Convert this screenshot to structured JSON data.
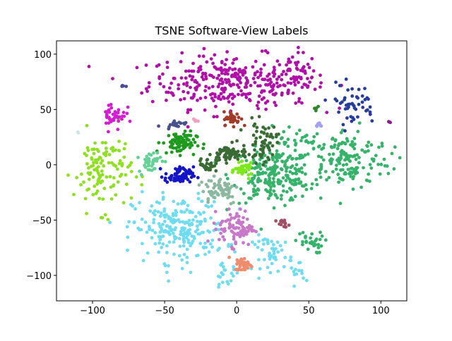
{
  "chart_data": {
    "type": "scatter",
    "title": "TSNE Software-View Labels",
    "xlabel": "",
    "ylabel": "",
    "xlim": [
      -125,
      118
    ],
    "ylim": [
      -123,
      112
    ],
    "xticks": [
      -100,
      -50,
      0,
      50,
      100
    ],
    "yticks": [
      -100,
      -50,
      0,
      50,
      100
    ],
    "xtick_labels": [
      "−100",
      "−50",
      "0",
      "50",
      "100"
    ],
    "ytick_labels": [
      "−100",
      "−50",
      "0",
      "50",
      "100"
    ],
    "grid": false,
    "legend": "none",
    "clusters": [
      {
        "color": "#b010a8",
        "cx": -5,
        "cy": 75,
        "sx": 28,
        "sy": 12,
        "n": 300
      },
      {
        "color": "#b010a8",
        "cx": 40,
        "cy": 78,
        "sx": 10,
        "sy": 12,
        "n": 60
      },
      {
        "color": "#36b36a",
        "cx": 25,
        "cy": -10,
        "sx": 14,
        "sy": 12,
        "n": 230
      },
      {
        "color": "#36b36a",
        "cx": 75,
        "cy": 5,
        "sx": 16,
        "sy": 14,
        "n": 170
      },
      {
        "color": "#36b36a",
        "cx": 50,
        "cy": -70,
        "sx": 5,
        "sy": 5,
        "n": 30
      },
      {
        "color": "#36b36a",
        "cx": 38,
        "cy": 20,
        "sx": 8,
        "sy": 8,
        "n": 30
      },
      {
        "color": "#6fdcf0",
        "cx": -40,
        "cy": -58,
        "sx": 16,
        "sy": 15,
        "n": 230
      },
      {
        "color": "#6fdcf0",
        "cx": 25,
        "cy": -80,
        "sx": 7,
        "sy": 8,
        "n": 50
      },
      {
        "color": "#6fdcf0",
        "cx": -8,
        "cy": -100,
        "sx": 5,
        "sy": 5,
        "n": 20
      },
      {
        "color": "#6fdcf0",
        "cx": 45,
        "cy": -98,
        "sx": 4,
        "sy": 4,
        "n": 12
      },
      {
        "color": "#8ee020",
        "cx": -93,
        "cy": -5,
        "sx": 10,
        "sy": 18,
        "n": 120
      },
      {
        "color": "#7de81a",
        "cx": 5,
        "cy": -5,
        "sx": 3,
        "sy": 3,
        "n": 40
      },
      {
        "color": "#3a6b35",
        "cx": -5,
        "cy": 10,
        "sx": 6,
        "sy": 4,
        "n": 70
      },
      {
        "color": "#3a6b35",
        "cx": 18,
        "cy": 20,
        "sx": 5,
        "sy": 9,
        "n": 60
      },
      {
        "color": "#3a6b35",
        "cx": -20,
        "cy": 0,
        "sx": 3,
        "sy": 3,
        "n": 30
      },
      {
        "color": "#1e9b1e",
        "cx": -40,
        "cy": 20,
        "sx": 6,
        "sy": 5,
        "n": 80
      },
      {
        "color": "#1414c8",
        "cx": -40,
        "cy": -10,
        "sx": 5,
        "sy": 4,
        "n": 70
      },
      {
        "color": "#c878c8",
        "cx": 0,
        "cy": -57,
        "sx": 6,
        "sy": 8,
        "n": 90
      },
      {
        "color": "#8cb8a0",
        "cx": -12,
        "cy": -22,
        "sx": 7,
        "sy": 7,
        "n": 60
      },
      {
        "color": "#a03c28",
        "cx": -3,
        "cy": 42,
        "sx": 3,
        "sy": 3,
        "n": 40
      },
      {
        "color": "#f08c6e",
        "cx": 5,
        "cy": -90,
        "sx": 3,
        "sy": 3,
        "n": 40
      },
      {
        "color": "#d21ed2",
        "cx": -85,
        "cy": 45,
        "sx": 4,
        "sy": 7,
        "n": 40
      },
      {
        "color": "#283c9b",
        "cx": 80,
        "cy": 55,
        "sx": 8,
        "sy": 9,
        "n": 50
      },
      {
        "color": "#64d296",
        "cx": -60,
        "cy": 3,
        "sx": 4,
        "sy": 5,
        "n": 40
      },
      {
        "color": "#46508c",
        "cx": -43,
        "cy": 37,
        "sx": 4,
        "sy": 1.5,
        "n": 18
      },
      {
        "color": "#a05064",
        "cx": 32,
        "cy": -53,
        "sx": 2,
        "sy": 1.5,
        "n": 14
      },
      {
        "color": "#a0a0f0",
        "cx": 57,
        "cy": 36,
        "sx": 1.5,
        "sy": 1,
        "n": 8
      },
      {
        "color": "#f0a0c0",
        "cx": -28,
        "cy": 40,
        "sx": 1,
        "sy": 1,
        "n": 5
      },
      {
        "color": "#4a4a9a",
        "cx": -78,
        "cy": 71,
        "sx": 1,
        "sy": 0.5,
        "n": 4
      },
      {
        "color": "#8c1c8c",
        "cx": 106,
        "cy": 39,
        "sx": 0.5,
        "sy": 0.5,
        "n": 3
      },
      {
        "color": "#2a8a2a",
        "cx": 55,
        "cy": 50,
        "sx": 1,
        "sy": 1,
        "n": 4
      },
      {
        "color": "#c8e6f0",
        "cx": -110,
        "cy": 29,
        "sx": 0.5,
        "sy": 0.5,
        "n": 2
      }
    ]
  }
}
